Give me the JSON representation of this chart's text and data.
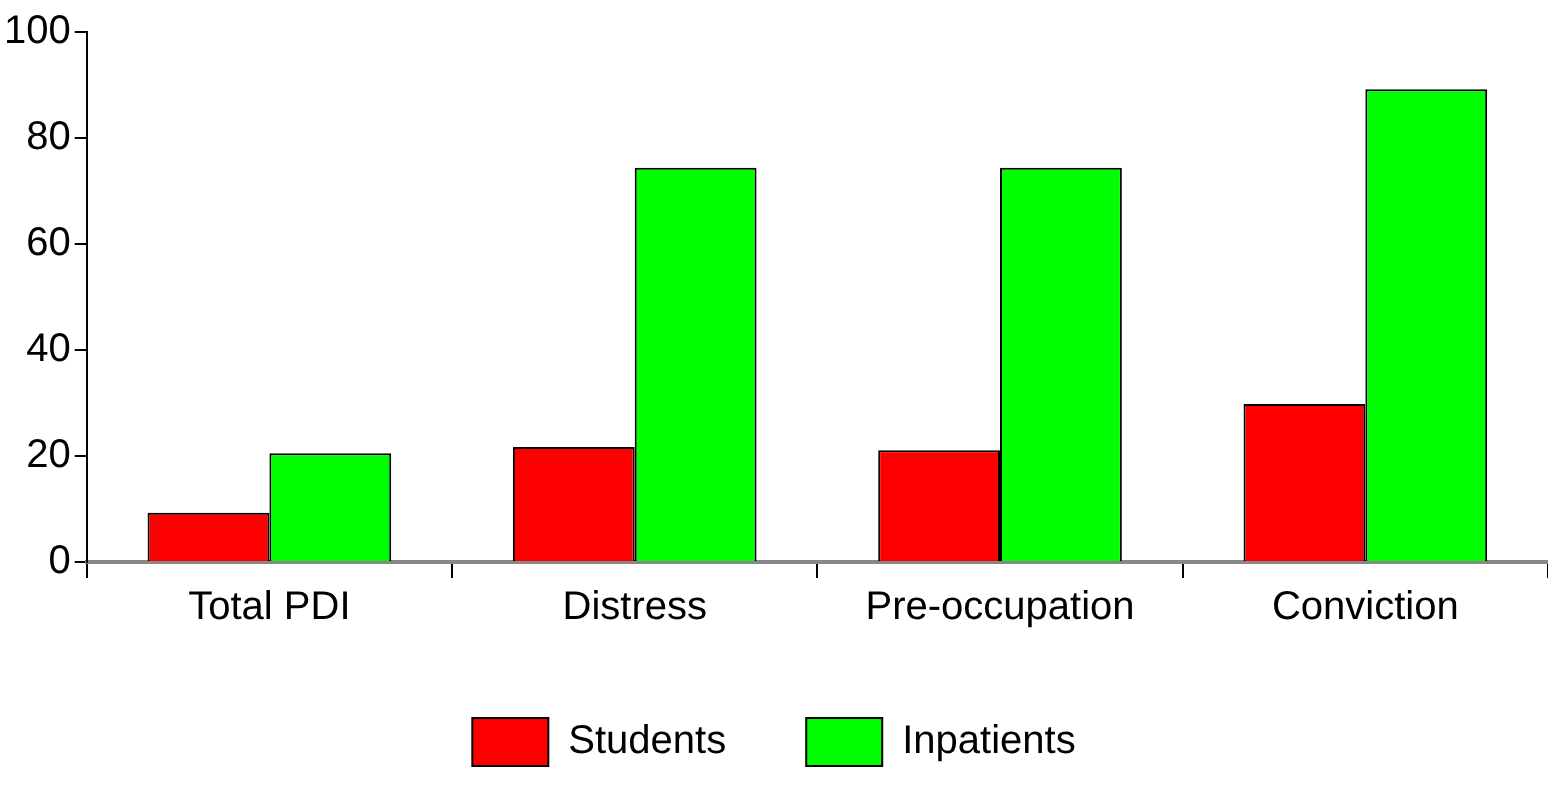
{
  "chart_data": {
    "type": "bar",
    "categories": [
      "Total PDI",
      "Distress",
      "Pre-occupation",
      "Conviction"
    ],
    "series": [
      {
        "name": "Students",
        "color": "#ff0000",
        "values": [
          9.3,
          21.7,
          21.1,
          29.8
        ]
      },
      {
        "name": "Inpatients",
        "color": "#00ff00",
        "values": [
          20.5,
          74.4,
          74.4,
          89.2
        ]
      }
    ],
    "ylim": [
      0,
      100
    ],
    "yticks": [
      0,
      20,
      40,
      60,
      80,
      100
    ],
    "grid": false,
    "legend": "bottom"
  }
}
